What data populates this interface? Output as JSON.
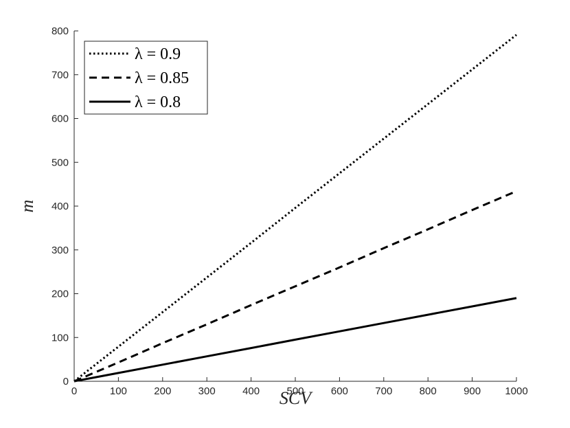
{
  "chart_data": {
    "type": "line",
    "title": "",
    "xlabel": "SCV",
    "ylabel": "m",
    "xlim": [
      0,
      1000
    ],
    "ylim": [
      0,
      800
    ],
    "xticks": [
      0,
      100,
      200,
      300,
      400,
      500,
      600,
      700,
      800,
      900,
      1000
    ],
    "yticks": [
      0,
      100,
      200,
      300,
      400,
      500,
      600,
      700,
      800
    ],
    "grid": false,
    "legend_position": "top-left",
    "series": [
      {
        "name": "λ = 0.9",
        "style": "dotted",
        "color": "#000000",
        "x": [
          0,
          100,
          200,
          300,
          400,
          500,
          600,
          700,
          800,
          900,
          1000
        ],
        "y": [
          0,
          79,
          158,
          237,
          316,
          396,
          475,
          554,
          633,
          712,
          791
        ]
      },
      {
        "name": "λ = 0.85",
        "style": "dashed",
        "color": "#000000",
        "x": [
          0,
          100,
          200,
          300,
          400,
          500,
          600,
          700,
          800,
          900,
          1000
        ],
        "y": [
          0,
          43,
          87,
          130,
          174,
          217,
          260,
          304,
          347,
          391,
          434
        ]
      },
      {
        "name": "λ = 0.8",
        "style": "solid",
        "color": "#000000",
        "x": [
          0,
          100,
          200,
          300,
          400,
          500,
          600,
          700,
          800,
          900,
          1000
        ],
        "y": [
          0,
          19,
          38,
          57,
          76,
          95,
          114,
          133,
          152,
          171,
          190
        ]
      }
    ]
  }
}
